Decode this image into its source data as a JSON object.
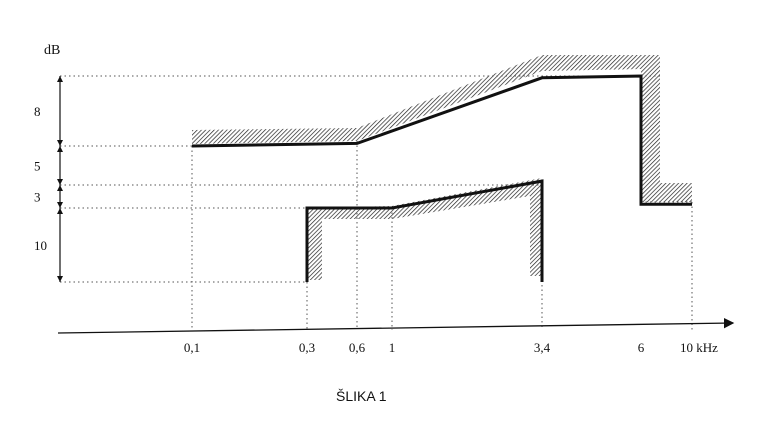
{
  "figure": {
    "y_unit": "dB",
    "x_unit": "kHz",
    "caption": "ŠLIKA 1",
    "x_ticks": [
      {
        "value": 0.1,
        "label": "0,1"
      },
      {
        "value": 0.3,
        "label": "0,3"
      },
      {
        "value": 0.6,
        "label": "0,6"
      },
      {
        "value": 1,
        "label": "1"
      },
      {
        "value": 3.4,
        "label": "3,4"
      },
      {
        "value": 6,
        "label": "6"
      },
      {
        "value": 10,
        "label": "10 kHz"
      }
    ],
    "db_intervals": [
      {
        "label": "8",
        "from": 18,
        "to": 26
      },
      {
        "label": "5",
        "from": 13,
        "to": 18
      },
      {
        "label": "3",
        "from": 10,
        "to": 13
      },
      {
        "label": "10",
        "from": 0,
        "to": 10
      }
    ]
  },
  "chart_data": {
    "type": "line",
    "x_unit": "kHz",
    "y_unit": "dB",
    "series": [
      {
        "points": [
          [
            0.1,
            18
          ],
          [
            0.6,
            18.3
          ],
          [
            3.4,
            25.8
          ],
          [
            6,
            26
          ],
          [
            6,
            10.5
          ],
          [
            10,
            10.5
          ]
        ]
      },
      {
        "points": [
          [
            0.3,
            0
          ],
          [
            0.3,
            10
          ],
          [
            1,
            10
          ],
          [
            3.4,
            13.5
          ],
          [
            3.4,
            0
          ]
        ]
      }
    ]
  },
  "colors": {
    "line": "#111111",
    "hatch": "#222222",
    "grid": "#555555"
  }
}
